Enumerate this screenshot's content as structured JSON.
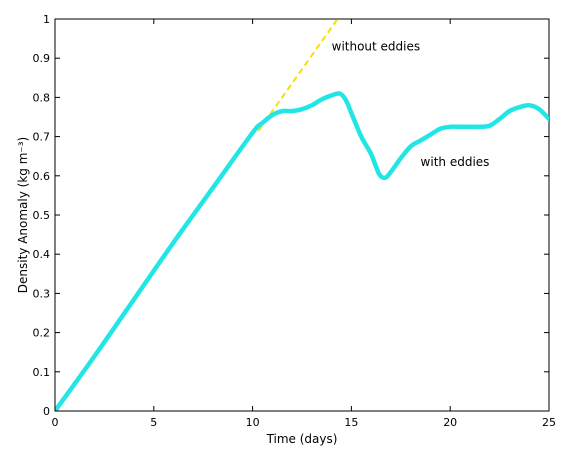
{
  "chart_data": {
    "type": "line",
    "xlabel": "Time (days)",
    "ylabel": "Density Anomaly (kg m⁻³)",
    "xlim": [
      0,
      25
    ],
    "ylim": [
      0,
      1
    ],
    "xticks": [
      0,
      5,
      10,
      15,
      20,
      25
    ],
    "yticks": [
      0,
      0.1,
      0.2,
      0.3,
      0.4,
      0.5,
      0.6,
      0.7,
      0.8,
      0.9,
      1
    ],
    "grid": false,
    "legend": "none",
    "series": [
      {
        "name": "without eddies",
        "color": "#f5e000",
        "style": "dashed",
        "x": [
          10.3,
          14.3
        ],
        "y": [
          0.715,
          1.0
        ]
      },
      {
        "name": "with eddies",
        "color": "#22e6e6",
        "style": "solid",
        "x": [
          0,
          2,
          4,
          6,
          8,
          10,
          10.5,
          11,
          11.5,
          12,
          12.5,
          13,
          13.5,
          14,
          14.4,
          14.7,
          15,
          15.5,
          16,
          16.4,
          16.7,
          17,
          17.5,
          18,
          18.5,
          19,
          19.5,
          20,
          20.5,
          21,
          21.5,
          22,
          22.5,
          23,
          23.5,
          24,
          24.5,
          25
        ],
        "y": [
          0.0,
          0.14,
          0.285,
          0.43,
          0.57,
          0.71,
          0.735,
          0.755,
          0.765,
          0.765,
          0.77,
          0.78,
          0.795,
          0.805,
          0.81,
          0.795,
          0.76,
          0.7,
          0.655,
          0.605,
          0.595,
          0.61,
          0.645,
          0.675,
          0.69,
          0.705,
          0.72,
          0.725,
          0.725,
          0.725,
          0.725,
          0.728,
          0.745,
          0.765,
          0.775,
          0.78,
          0.77,
          0.745
        ]
      }
    ],
    "annotations": [
      {
        "text": "without eddies",
        "x": 14.0,
        "y": 0.92
      },
      {
        "text": "with eddies",
        "x": 18.5,
        "y": 0.625
      }
    ]
  }
}
